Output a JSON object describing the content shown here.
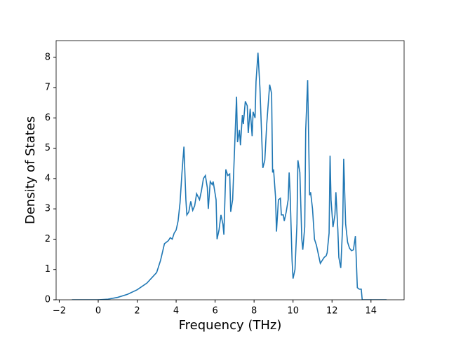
{
  "chart_data": {
    "type": "line",
    "xlabel": "Frequency (THz)",
    "ylabel": "Density of States",
    "x": [
      -1.35,
      0,
      0.5,
      1,
      1.5,
      2,
      2.5,
      3,
      3.2,
      3.4,
      3.6,
      3.7,
      3.8,
      3.9,
      4.0,
      4.1,
      4.2,
      4.3,
      4.4,
      4.5,
      4.55,
      4.65,
      4.75,
      4.85,
      4.95,
      5.05,
      5.2,
      5.3,
      5.4,
      5.5,
      5.6,
      5.65,
      5.75,
      5.85,
      5.9,
      6.0,
      6.05,
      6.1,
      6.2,
      6.3,
      6.4,
      6.45,
      6.55,
      6.65,
      6.75,
      6.8,
      6.9,
      7.0,
      7.1,
      7.15,
      7.25,
      7.3,
      7.4,
      7.45,
      7.55,
      7.65,
      7.7,
      7.8,
      7.9,
      7.95,
      8.05,
      8.1,
      8.2,
      8.3,
      8.45,
      8.55,
      8.65,
      8.8,
      8.9,
      8.95,
      9.0,
      9.1,
      9.15,
      9.25,
      9.35,
      9.4,
      9.5,
      9.55,
      9.65,
      9.75,
      9.8,
      9.85,
      9.95,
      10.0,
      10.1,
      10.2,
      10.25,
      10.35,
      10.45,
      10.5,
      10.6,
      10.65,
      10.75,
      10.85,
      10.9,
      11.0,
      11.1,
      11.2,
      11.3,
      11.4,
      11.5,
      11.6,
      11.7,
      11.75,
      11.85,
      11.9,
      11.95,
      12.05,
      12.15,
      12.2,
      12.3,
      12.35,
      12.45,
      12.55,
      12.6,
      12.7,
      12.8,
      12.9,
      13.0,
      13.1,
      13.2,
      13.3,
      13.4,
      13.5,
      13.55,
      14.8
    ],
    "series": [
      {
        "name": "DOS",
        "color": "#1f77b4",
        "values": [
          0,
          0,
          0.02,
          0.08,
          0.18,
          0.33,
          0.55,
          0.9,
          1.3,
          1.85,
          1.95,
          2.05,
          2.0,
          2.2,
          2.3,
          2.6,
          3.2,
          4.2,
          5.05,
          3.3,
          2.8,
          2.9,
          3.25,
          2.95,
          3.1,
          3.5,
          3.3,
          3.6,
          4.0,
          4.1,
          3.7,
          3.0,
          3.9,
          3.8,
          3.9,
          3.5,
          3.3,
          2.0,
          2.3,
          2.8,
          2.5,
          2.15,
          4.3,
          4.1,
          4.15,
          2.9,
          3.3,
          5.0,
          6.7,
          5.2,
          5.6,
          5.1,
          6.1,
          5.8,
          6.55,
          6.4,
          5.5,
          6.3,
          5.4,
          6.2,
          6.0,
          7.2,
          8.15,
          7.0,
          4.35,
          4.6,
          5.8,
          7.1,
          6.8,
          4.2,
          4.3,
          3.4,
          2.25,
          3.3,
          3.35,
          2.8,
          2.8,
          2.6,
          2.9,
          3.3,
          4.2,
          3.5,
          1.3,
          0.7,
          1.0,
          2.5,
          4.6,
          4.2,
          2.0,
          1.65,
          2.4,
          5.6,
          7.25,
          3.45,
          3.55,
          3.0,
          2.0,
          1.8,
          1.5,
          1.2,
          1.3,
          1.4,
          1.45,
          1.55,
          2.2,
          4.75,
          3.3,
          2.4,
          2.8,
          3.55,
          2.3,
          1.4,
          1.05,
          2.5,
          4.65,
          2.5,
          1.9,
          1.7,
          1.62,
          1.65,
          2.1,
          0.4,
          0.35,
          0.35,
          0,
          0
        ]
      }
    ],
    "xlim": [
      -2.16,
      15.7
    ],
    "ylim": [
      0,
      8.55
    ],
    "xticks": [
      {
        "value": -2,
        "label": "−2"
      },
      0,
      2,
      4,
      6,
      8,
      10,
      12,
      14
    ],
    "yticks": [
      0,
      1,
      2,
      3,
      4,
      5,
      6,
      7,
      8
    ]
  }
}
